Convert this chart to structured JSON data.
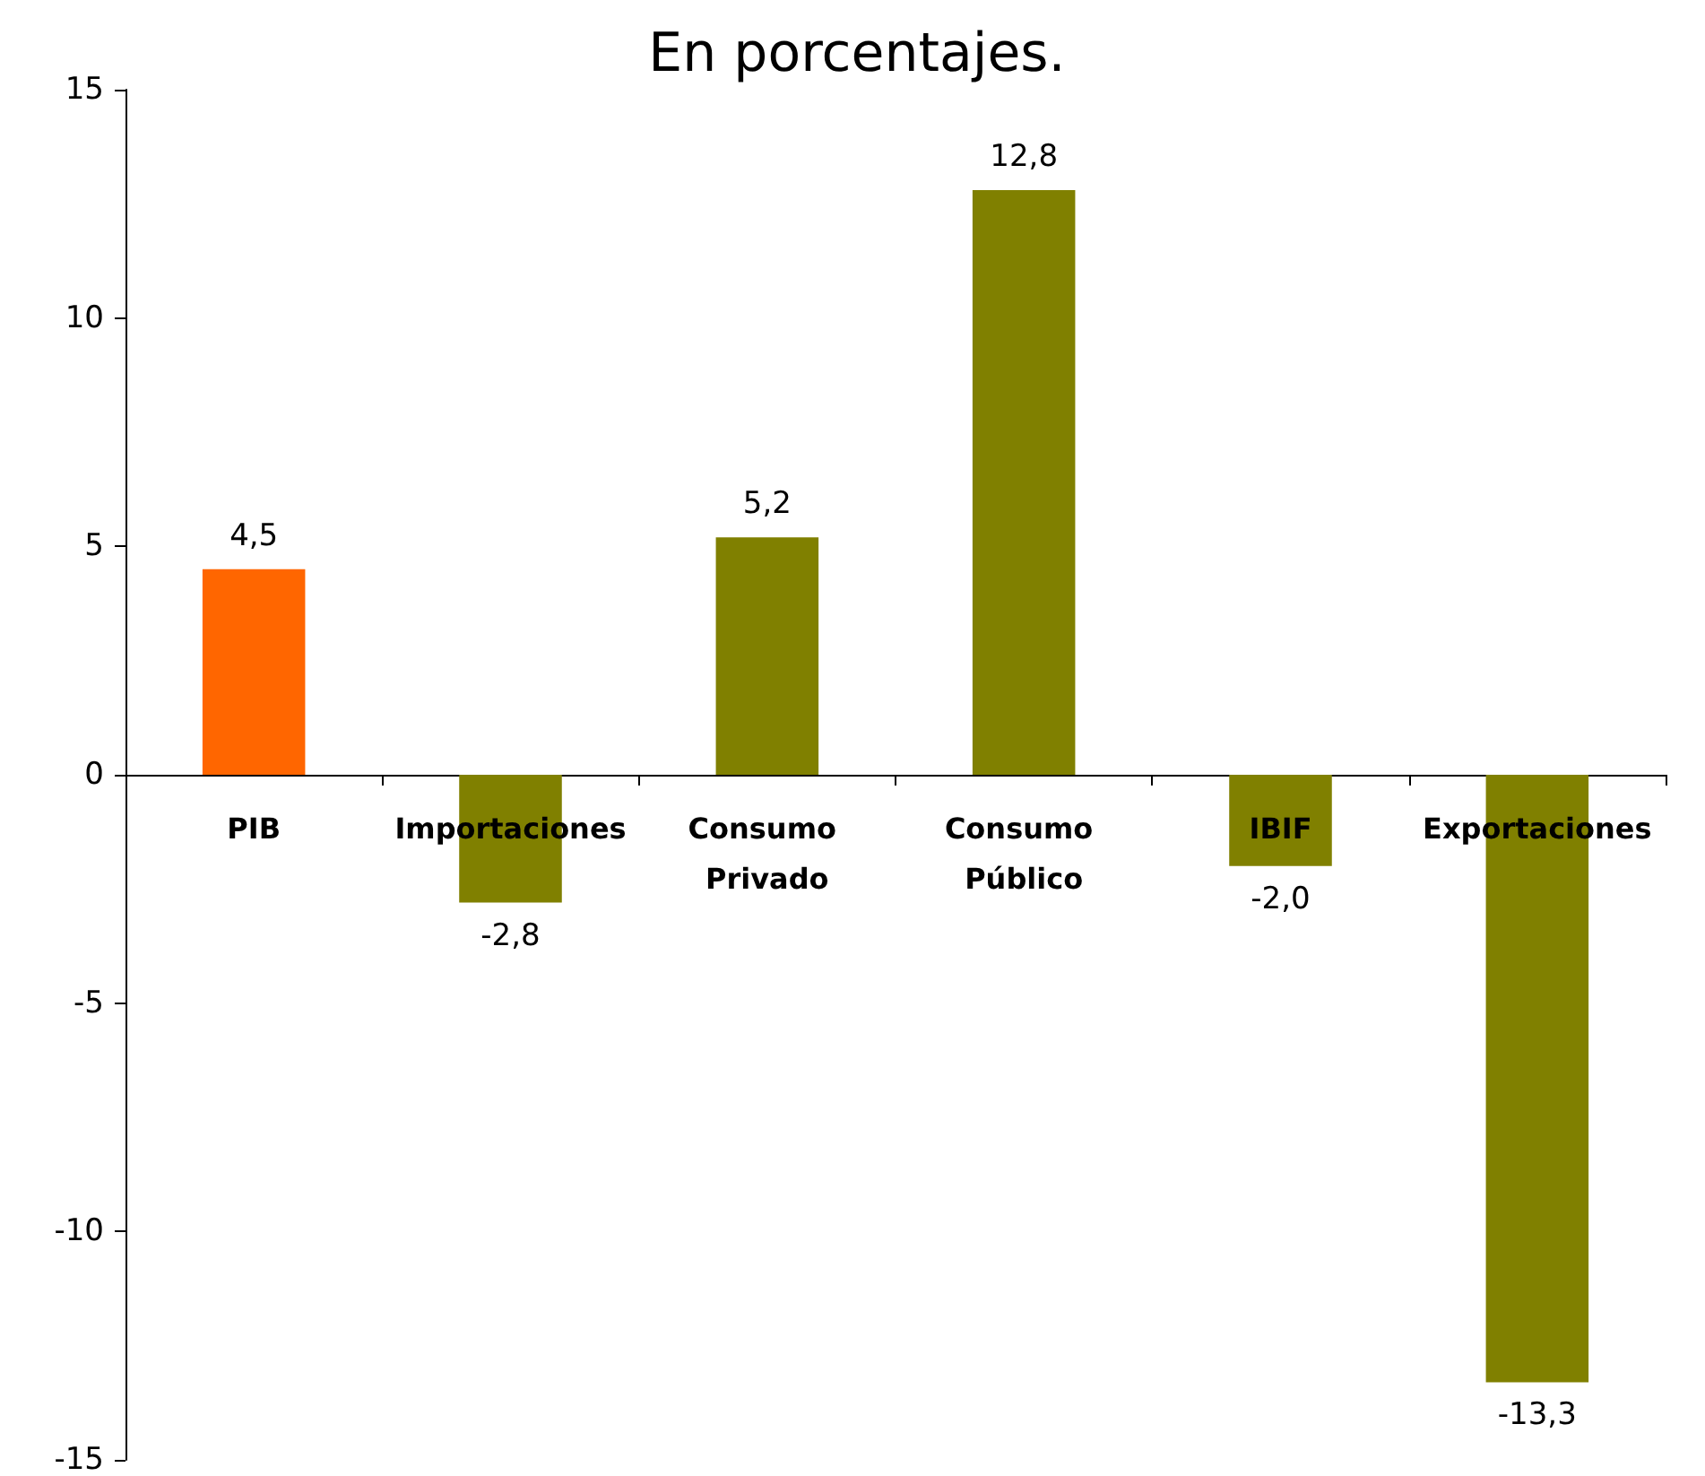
{
  "chart_data": {
    "type": "bar",
    "title": "En porcentajes.",
    "categories": [
      "PIB",
      "Importaciones",
      "Consumo Privado",
      "Consumo Público",
      "IBIF",
      "Exportaciones"
    ],
    "values": [
      4.5,
      -2.8,
      5.2,
      12.8,
      -2.0,
      -13.3
    ],
    "colors": [
      "#ff6600",
      "#808000",
      "#808000",
      "#808000",
      "#808000",
      "#808000"
    ],
    "value_labels": [
      "4,5",
      "-2,8",
      "5,2",
      "12,8",
      "-2,0",
      "-13,3"
    ],
    "ylim": [
      -15,
      15
    ],
    "yticks": [
      -15,
      -10,
      -5,
      0,
      5,
      10,
      15
    ]
  }
}
